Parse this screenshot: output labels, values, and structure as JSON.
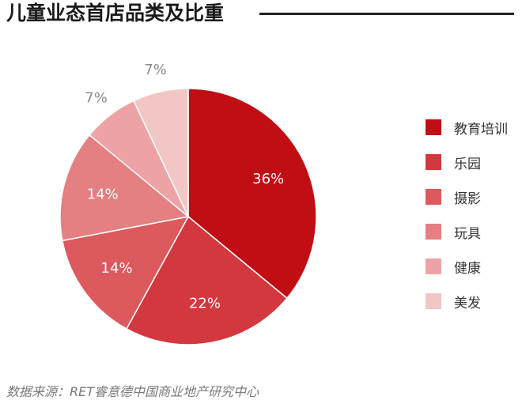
{
  "title": "儿童业态首店品类及比重",
  "source": "数据来源：RET睿意德中国商业地产研究中心",
  "chart_data": {
    "type": "pie",
    "categories": [
      "教育培训",
      "乐园",
      "摄影",
      "玩具",
      "健康",
      "美发"
    ],
    "values": [
      36,
      22,
      14,
      14,
      7,
      7
    ],
    "value_labels": [
      "36%",
      "22%",
      "14%",
      "14%",
      "7%",
      "7%"
    ],
    "colors": [
      "#c10d14",
      "#d2383e",
      "#dc5a5e",
      "#e47f82",
      "#eda3a5",
      "#f3c6c6"
    ],
    "title": "儿童业态首店品类及比重",
    "legend_position": "right",
    "start_angle": "12-o'clock",
    "direction": "clockwise"
  }
}
